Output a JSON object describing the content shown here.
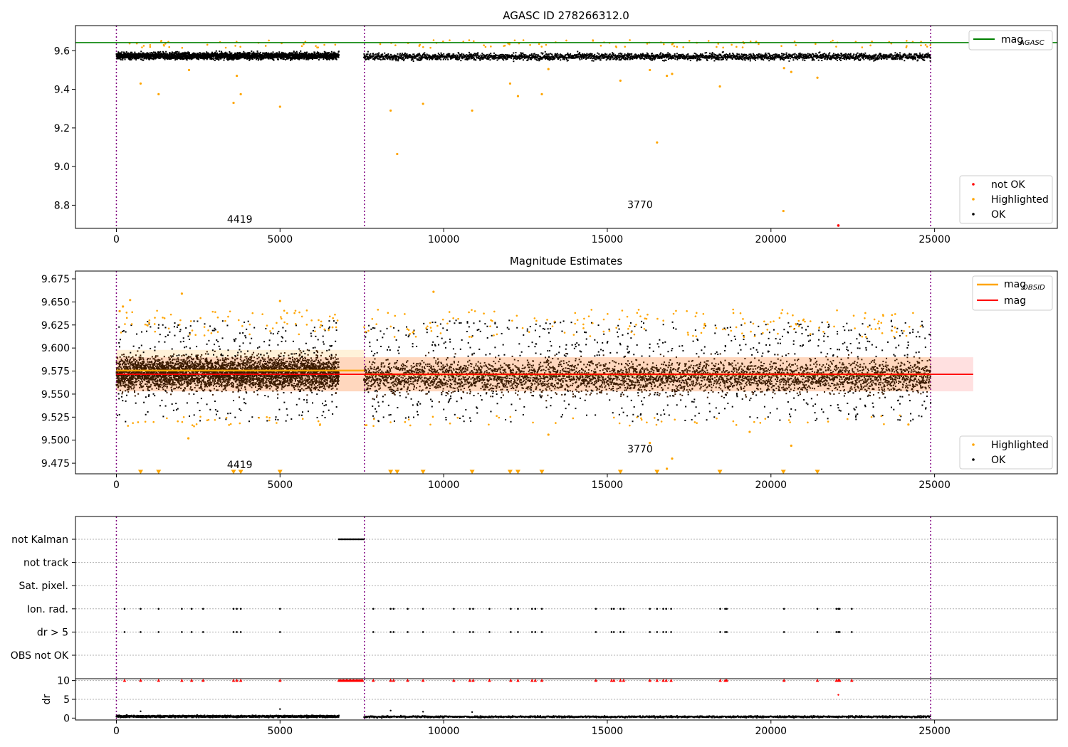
{
  "chart_data": [
    {
      "type": "scatter",
      "title": "AGASC ID 278266312.0",
      "xlim": [
        -1250,
        28750
      ],
      "ylim": [
        8.68,
        9.73
      ],
      "x_ticks": [
        0,
        5000,
        10000,
        15000,
        20000,
        25000
      ],
      "y_ticks": [
        8.8,
        9.0,
        9.2,
        9.4,
        9.6
      ],
      "y_tick_labels": [
        "8.8",
        "9.0",
        "9.2",
        "9.4",
        "9.6"
      ],
      "grid": false,
      "obs_boundaries": [
        0,
        7580,
        24880
      ],
      "obs_counts": [
        {
          "x": 3770,
          "y": 8.71,
          "label": "4419"
        },
        {
          "x": 16000,
          "y": 8.785,
          "label": "3770"
        }
      ],
      "reference_line": {
        "name": "mag_AGASC",
        "value": 9.642,
        "color": "#008000"
      },
      "legend_top": {
        "placement": "top-right",
        "entries": [
          {
            "label": "mag",
            "sub": "AGASC",
            "color": "#008000",
            "kind": "line"
          }
        ]
      },
      "legend_bottom": {
        "placement": "bottom-right",
        "entries": [
          {
            "label": "not OK",
            "color": "#ff0000",
            "kind": "dot"
          },
          {
            "label": "Highlighted",
            "color": "#ffa500",
            "kind": "dot"
          },
          {
            "label": "OK",
            "color": "#000000",
            "kind": "dot"
          }
        ]
      },
      "series": [
        {
          "name": "OK",
          "color": "#000000",
          "bands": [
            {
              "x_start": 0,
              "x_end": 6800,
              "center": 9.573,
              "spread": 0.03
            },
            {
              "x_start": 7560,
              "x_end": 24880,
              "center": 9.569,
              "spread": 0.03
            }
          ]
        },
        {
          "name": "Highlighted",
          "color": "#ffa500",
          "points": [
            [
              740,
              9.43
            ],
            [
              1290,
              9.375
            ],
            [
              2220,
              9.5
            ],
            [
              3580,
              9.33
            ],
            [
              3680,
              9.47
            ],
            [
              3800,
              9.375
            ],
            [
              5000,
              9.31
            ],
            [
              8380,
              9.29
            ],
            [
              8580,
              9.065
            ],
            [
              9370,
              9.325
            ],
            [
              10870,
              9.29
            ],
            [
              12030,
              9.43
            ],
            [
              12270,
              9.365
            ],
            [
              13000,
              9.375
            ],
            [
              13200,
              9.505
            ],
            [
              15400,
              9.445
            ],
            [
              16300,
              9.5
            ],
            [
              16520,
              9.125
            ],
            [
              16820,
              9.47
            ],
            [
              16980,
              9.48
            ],
            [
              18440,
              9.415
            ],
            [
              20380,
              8.77
            ],
            [
              20400,
              9.51
            ],
            [
              20620,
              9.49
            ],
            [
              21420,
              9.46
            ]
          ]
        },
        {
          "name": "not OK",
          "color": "#ff0000",
          "points": [
            [
              22060,
              8.695
            ]
          ]
        }
      ]
    },
    {
      "type": "scatter",
      "title": "Magnitude Estimates",
      "xlim": [
        -1250,
        28750
      ],
      "ylim": [
        9.4635,
        9.6835
      ],
      "x_ticks": [
        0,
        5000,
        10000,
        15000,
        20000,
        25000
      ],
      "y_ticks": [
        9.475,
        9.5,
        9.525,
        9.55,
        9.575,
        9.6,
        9.625,
        9.65,
        9.675
      ],
      "y_tick_labels": [
        "9.475",
        "9.500",
        "9.525",
        "9.550",
        "9.575",
        "9.600",
        "9.625",
        "9.650",
        "9.675"
      ],
      "grid": false,
      "obs_boundaries": [
        0,
        7580,
        24880
      ],
      "obs_counts": [
        {
          "x": 3770,
          "y": 9.4695,
          "label": "4419"
        },
        {
          "x": 16000,
          "y": 9.4865,
          "label": "3770"
        }
      ],
      "mag_line": {
        "value": 9.5715,
        "band": [
          9.553,
          9.59
        ],
        "x_end": 26180,
        "color": "#ff0000"
      },
      "mag_obsid": [
        {
          "x_start": 0,
          "x_end": 7580,
          "value": 9.5755,
          "band": [
            9.553,
            9.598
          ]
        },
        {
          "x_start": 7580,
          "x_end": 24880,
          "value": 9.5715,
          "band": [
            9.553,
            9.59
          ]
        }
      ],
      "legend_top": {
        "placement": "top-right",
        "entries": [
          {
            "label": "mag",
            "sub": "OBSID",
            "color": "#ffa500",
            "kind": "line"
          },
          {
            "label": "mag",
            "sub": "",
            "color": "#ff0000",
            "kind": "line"
          }
        ]
      },
      "legend_bottom": {
        "placement": "bottom-right",
        "entries": [
          {
            "label": "Highlighted",
            "color": "#ffa500",
            "kind": "dot"
          },
          {
            "label": "OK",
            "color": "#000000",
            "kind": "dot"
          }
        ]
      },
      "series": [
        {
          "name": "OK",
          "color": "#000000",
          "bands": [
            {
              "x_start": 0,
              "x_end": 6800,
              "center": 9.573,
              "spread": 0.03
            },
            {
              "x_start": 7560,
              "x_end": 24880,
              "center": 9.569,
              "spread": 0.03
            }
          ]
        },
        {
          "name": "Highlighted",
          "color": "#ffa500",
          "points": [
            [
              100,
              9.64
            ],
            [
              200,
              9.645
            ],
            [
              420,
              9.652
            ],
            [
              2000,
              9.659
            ],
            [
              2200,
              9.502
            ],
            [
              5000,
              9.651
            ],
            [
              9690,
              9.661
            ],
            [
              13200,
              9.506
            ],
            [
              16300,
              9.497
            ],
            [
              16820,
              9.469
            ],
            [
              16980,
              9.48
            ],
            [
              19350,
              9.509
            ],
            [
              20620,
              9.494
            ],
            [
              24200,
              9.517
            ]
          ]
        },
        {
          "name": "Highlighted below axis",
          "color": "#ffa500",
          "points": [
            [
              740,
              9.4655
            ],
            [
              1290,
              9.4655
            ],
            [
              3580,
              9.4655
            ],
            [
              3800,
              9.4655
            ],
            [
              5000,
              9.4655
            ],
            [
              8380,
              9.4655
            ],
            [
              8580,
              9.4655
            ],
            [
              9370,
              9.4655
            ],
            [
              10870,
              9.4655
            ],
            [
              12030,
              9.4655
            ],
            [
              12270,
              9.4655
            ],
            [
              13000,
              9.4655
            ],
            [
              15400,
              9.4655
            ],
            [
              16520,
              9.4655
            ],
            [
              18440,
              9.4655
            ],
            [
              20380,
              9.4655
            ],
            [
              21420,
              9.4655
            ]
          ]
        }
      ]
    },
    {
      "type": "scatter",
      "title": "",
      "xlim": [
        -1250,
        28750
      ],
      "x_ticks": [
        0,
        5000,
        10000,
        15000,
        20000,
        25000
      ],
      "obs_boundaries": [
        0,
        7580,
        24880
      ],
      "flag_rows": [
        "not Kalman",
        "not track",
        "Sat. pixel.",
        "Ion. rad.",
        "dr > 5",
        "OBS not OK"
      ],
      "flags": {
        "not Kalman": {
          "x_start": 6800,
          "x_end": 7560
        },
        "Ion. rad.": [
          250,
          740,
          1290,
          2000,
          2300,
          2650,
          3580,
          3680,
          3800,
          5000,
          7850,
          8380,
          8470,
          8900,
          9370,
          10310,
          10800,
          10900,
          11400,
          12050,
          12270,
          12700,
          12800,
          13000,
          14650,
          15130,
          15200,
          15400,
          15500,
          16300,
          16520,
          16710,
          16800,
          16950,
          18450,
          18600,
          18650,
          20400,
          21420,
          22000,
          22060,
          22100,
          22470
        ],
        "dr > 5": [
          250,
          740,
          1290,
          2000,
          2300,
          2650,
          3580,
          3680,
          3800,
          5000,
          7850,
          8380,
          8470,
          8900,
          9370,
          10310,
          10800,
          10900,
          11400,
          12050,
          12270,
          12700,
          12800,
          13000,
          14650,
          15130,
          15200,
          15400,
          15500,
          16300,
          16520,
          16710,
          16800,
          16950,
          18450,
          18600,
          18650,
          20400,
          21420,
          22000,
          22060,
          22100,
          22470
        ]
      },
      "dr_panel": {
        "ylabel": "dr",
        "y_ticks": [
          0,
          5,
          10
        ],
        "y_tick_labels": [
          "0",
          "5",
          "10"
        ],
        "ylim": [
          -0.5,
          10.5
        ],
        "cap_value": 10,
        "capped_points": [
          250,
          740,
          1290,
          2000,
          2300,
          2650,
          3580,
          3680,
          3800,
          5000,
          7850,
          8380,
          8470,
          8900,
          9370,
          10310,
          10800,
          10900,
          11400,
          12050,
          12270,
          12700,
          12800,
          13000,
          14650,
          15130,
          15200,
          15400,
          15500,
          16300,
          16520,
          16710,
          16800,
          16950,
          18450,
          18600,
          18650,
          20400,
          21420,
          22000,
          22060,
          22100,
          22470
        ],
        "capped_range": {
          "x_start": 6800,
          "x_end": 7560
        },
        "other_points": [
          [
            22060,
            6.2
          ],
          [
            740,
            1.8
          ],
          [
            5000,
            2.4
          ],
          [
            8380,
            2.0
          ],
          [
            9370,
            1.7
          ],
          [
            10870,
            1.6
          ]
        ],
        "bands": [
          {
            "x_start": 0,
            "x_end": 6800,
            "center": 0.45,
            "spread": 0.45
          },
          {
            "x_start": 7560,
            "x_end": 24880,
            "center": 0.35,
            "spread": 0.4
          }
        ]
      }
    }
  ]
}
